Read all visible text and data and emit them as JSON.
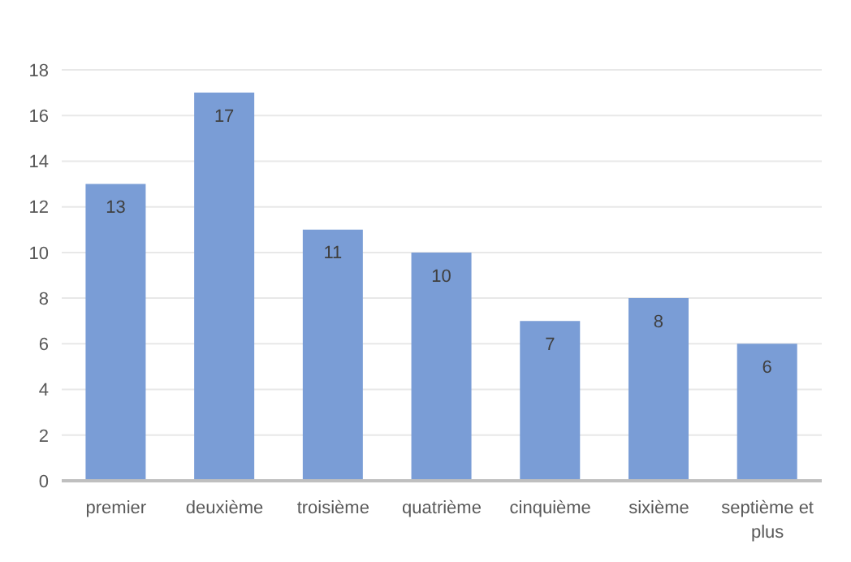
{
  "chart_data": {
    "type": "bar",
    "categories": [
      "premier",
      "deuxième",
      "troisième",
      "quatrième",
      "cinquième",
      "sixième",
      "septième et plus"
    ],
    "values": [
      13,
      17,
      11,
      10,
      7,
      8,
      6
    ],
    "color": "#7a9dd6",
    "ylim": [
      0,
      18
    ],
    "yticks": [
      0,
      2,
      4,
      6,
      8,
      10,
      12,
      14,
      16,
      18
    ],
    "grid": "y",
    "data_labels": true
  }
}
